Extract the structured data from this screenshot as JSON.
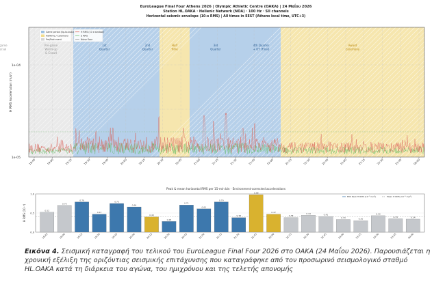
{
  "top_chart": {
    "title_line1": "EuroLeague Final Four Athens 2026  |  Olympic Athletic Centre (OAKA)  |  24 Μαΐου 2026",
    "title_line2": "Station HL.OAKA · Hellenic Network (NOA) · 100 Hz · SII channels",
    "title_line3": "Horizontal seismic envelope (10-s RMS)  |  All times in EEST (Athens local time, UTC+3)",
    "ylabel": "H RMS Acceleration (m/s²)",
    "yticks": [
      "1e-04",
      "1e-05"
    ],
    "legend_left": [
      {
        "label": "Game period (tip-to-buzzer)",
        "color": "#9bbfe0"
      },
      {
        "label": "Halftime / Ceremony",
        "color": "#f2dc8c"
      },
      {
        "label": "Pre/Post event",
        "color": "#d4d4d4"
      }
    ],
    "legend_right": [
      {
        "label": "H RMS (10 s window)",
        "color": "#e06a60"
      },
      {
        "label": "Z RMS",
        "color": "#6bbf6b"
      },
      {
        "label": "Noise floor",
        "color": "#999999"
      }
    ],
    "band_labels": [
      {
        "text": "Pre-game\nWarm-up\n& Crowd",
        "kind": "pre"
      },
      {
        "text": "1st\nQuarter",
        "kind": "game"
      },
      {
        "text": "2nd\nQuarter",
        "kind": "game"
      },
      {
        "text": "Half\nTime",
        "kind": "half"
      },
      {
        "text": "3rd\nQuarter",
        "kind": "game"
      },
      {
        "text": "4th Quarter\n+ OT (Final)",
        "kind": "game"
      },
      {
        "text": "Award\nCeremony",
        "kind": "half"
      },
      {
        "text": "Post-game\nDispersal",
        "kind": "pre"
      }
    ],
    "xticks": [
      "18:45",
      "19:00",
      "19:15",
      "19:30",
      "19:45",
      "20:00",
      "20:15",
      "20:30",
      "20:45",
      "21:00",
      "21:15",
      "21:30",
      "21:45",
      "22:00",
      "22:15",
      "22:30",
      "22:45",
      "23:00",
      "23:15",
      "23:30",
      "23:45",
      "00:00"
    ]
  },
  "chart_data": {
    "type": "bar",
    "title": "Peak & mean horizontal RMS per 15-min bin · Environment-corrected accelerations",
    "ylabel": "H RMS (10⁻⁵)",
    "ylim": [
      0,
      1.0
    ],
    "categories": [
      "18:45",
      "19:00",
      "19:15",
      "19:30",
      "19:45",
      "20:00",
      "20:15",
      "20:30",
      "20:45",
      "21:00",
      "21:15",
      "21:30",
      "21:45",
      "22:00",
      "22:15",
      "22:30",
      "22:45",
      "23:00",
      "23:15",
      "23:30",
      "23:45",
      "00:00"
    ],
    "values": [
      0.52,
      0.7,
      0.79,
      0.47,
      0.75,
      0.66,
      0.4,
      0.28,
      0.71,
      0.61,
      0.79,
      0.38,
      0.98,
      0.47,
      0.38,
      0.44,
      0.41,
      0.33,
      0.3,
      0.43,
      0.35,
      0.34
    ],
    "value_labels": [
      "0.52",
      "0.70",
      "0.79",
      "0.47",
      "0.75",
      "0.66",
      "0.40",
      "0.28",
      "0.71",
      "0.61",
      "0.79",
      "0.38",
      "0.98",
      "0.47",
      "0.38",
      "0.44",
      "0.41",
      "0.33",
      "0.30",
      "0.43",
      "0.35",
      "0.34"
    ],
    "kinds": [
      "pre",
      "pre",
      "game",
      "game",
      "game",
      "game",
      "half",
      "game",
      "game",
      "game",
      "game",
      "game",
      "half",
      "half",
      "pre",
      "pre",
      "pre",
      "pre",
      "pre",
      "pre",
      "pre",
      "pre"
    ],
    "legend": [
      {
        "label": "ERS Peak H RMS (10⁻⁵ m/s²)"
      },
      {
        "label": "Mean H RMS (10⁻⁵ m/s²)"
      }
    ],
    "colors": {
      "game": "#3d78ad",
      "half": "#d9b22f",
      "pre": "#c5c8cc"
    }
  },
  "caption": {
    "label": "Εικόνα 4.",
    "text": " Σεισμική καταγραφή του τελικού του EuroLeague Final Four 2026 στο ΟΑΚΑ (24 Μαΐου 2026). Παρουσιάζεται η χρονική εξέλιξη της οριζόντιας σεισμικής επιτάχυνσης που καταγράφηκε από τον προσωρινό σεισμολογικό σταθμό HL.OAKA κατά τη διάρκεια του αγώνα, του ημιχρόνου και της τελετής απονομής"
  },
  "colors": {
    "game_band": "#a9c8e6",
    "half_band": "#f5e2a0",
    "pre_band": "#e6e6e6",
    "trace_h": "#d9645a",
    "trace_z": "#5db85d",
    "noise": "#9a9a9a"
  }
}
